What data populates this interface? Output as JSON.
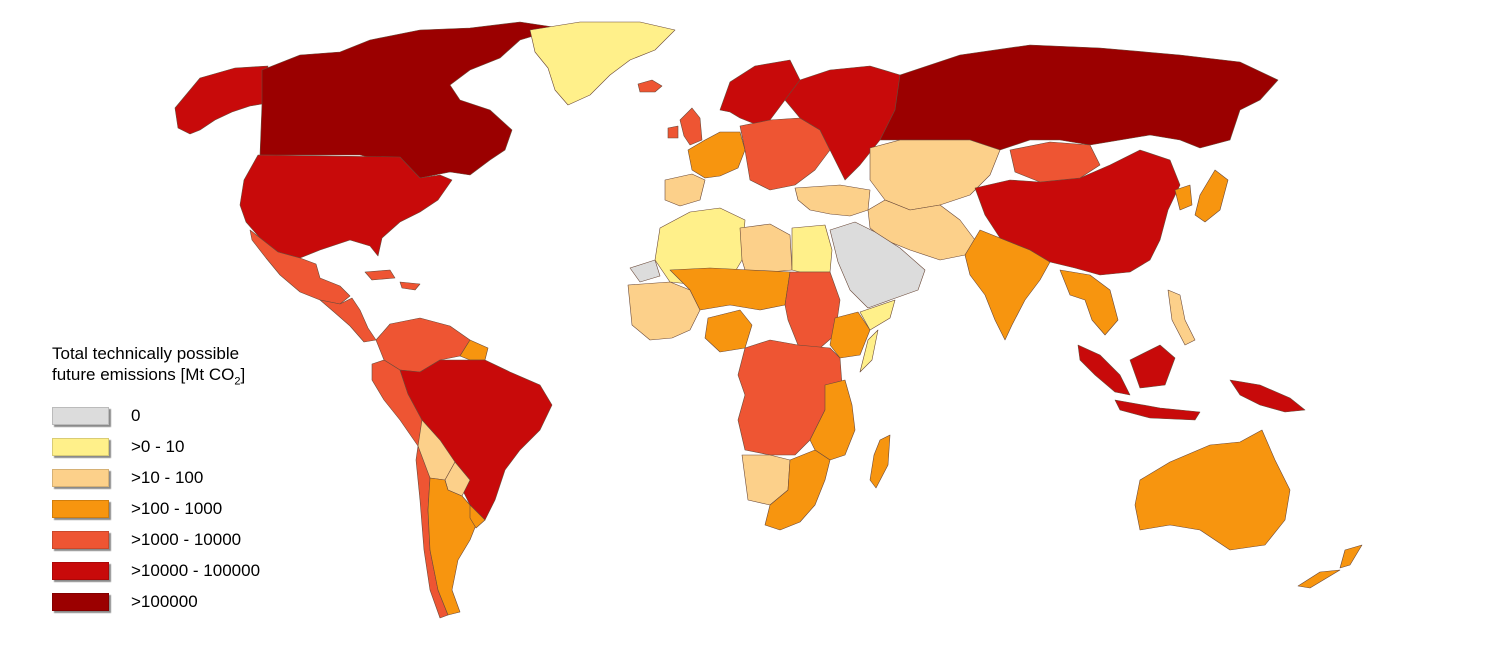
{
  "legend": {
    "title_line1": "Total technically possible",
    "title_line2_prefix": "future emissions [Mt CO",
    "title_line2_sub": "2",
    "title_line2_suffix": "]",
    "classes": [
      {
        "label": "0",
        "color": "#dcdcdc"
      },
      {
        "label": ">0 - 10",
        "color": "#fff08a"
      },
      {
        "label": ">10 - 100",
        "color": "#fcd08a"
      },
      {
        "label": ">100 - 1000",
        "color": "#f7950f"
      },
      {
        "label": ">1000 - 10000",
        "color": "#ee5533"
      },
      {
        "label": ">10000 - 100000",
        "color": "#c80a0a"
      },
      {
        "label": ">100000",
        "color": "#9b0000"
      }
    ]
  },
  "regions": [
    {
      "name": "canada",
      "class": 6
    },
    {
      "name": "alaska",
      "class": 5
    },
    {
      "name": "greenland",
      "class": 1
    },
    {
      "name": "united-states",
      "class": 5
    },
    {
      "name": "mexico",
      "class": 4
    },
    {
      "name": "central-america",
      "class": 4
    },
    {
      "name": "caribbean",
      "class": 4
    },
    {
      "name": "colombia-venezuela",
      "class": 4
    },
    {
      "name": "peru-ecuador",
      "class": 4
    },
    {
      "name": "brazil",
      "class": 5
    },
    {
      "name": "bolivia",
      "class": 2
    },
    {
      "name": "paraguay",
      "class": 2
    },
    {
      "name": "argentina",
      "class": 3
    },
    {
      "name": "chile",
      "class": 4
    },
    {
      "name": "uruguay",
      "class": 3
    },
    {
      "name": "guianas",
      "class": 3
    },
    {
      "name": "iceland",
      "class": 4
    },
    {
      "name": "uk-ireland",
      "class": 4
    },
    {
      "name": "scandinavia",
      "class": 5
    },
    {
      "name": "western-europe",
      "class": 3
    },
    {
      "name": "iberia",
      "class": 2
    },
    {
      "name": "eastern-europe",
      "class": 4
    },
    {
      "name": "russia",
      "class": 6
    },
    {
      "name": "russia-west",
      "class": 5
    },
    {
      "name": "kazakhstan-central-asia",
      "class": 2
    },
    {
      "name": "middle-east",
      "class": 2
    },
    {
      "name": "arabia",
      "class": 0
    },
    {
      "name": "iran",
      "class": 2
    },
    {
      "name": "india",
      "class": 3
    },
    {
      "name": "china",
      "class": 5
    },
    {
      "name": "mongolia",
      "class": 4
    },
    {
      "name": "southeast-asia",
      "class": 3
    },
    {
      "name": "korea-japan",
      "class": 3
    },
    {
      "name": "indonesia",
      "class": 5
    },
    {
      "name": "philippines",
      "class": 2
    },
    {
      "name": "new-guinea",
      "class": 5
    },
    {
      "name": "australia",
      "class": 3
    },
    {
      "name": "new-zealand",
      "class": 3
    },
    {
      "name": "north-africa",
      "class": 1
    },
    {
      "name": "western-sahara",
      "class": 0
    },
    {
      "name": "libya",
      "class": 2
    },
    {
      "name": "egypt",
      "class": 1
    },
    {
      "name": "west-africa",
      "class": 2
    },
    {
      "name": "mali-niger",
      "class": 3
    },
    {
      "name": "nigeria",
      "class": 3
    },
    {
      "name": "sudan",
      "class": 4
    },
    {
      "name": "ethiopia",
      "class": 3
    },
    {
      "name": "horn-africa",
      "class": 1
    },
    {
      "name": "central-africa",
      "class": 4
    },
    {
      "name": "east-africa",
      "class": 3
    },
    {
      "name": "namibia-botswana",
      "class": 2
    },
    {
      "name": "southern-africa",
      "class": 3
    },
    {
      "name": "madagascar",
      "class": 3
    }
  ]
}
